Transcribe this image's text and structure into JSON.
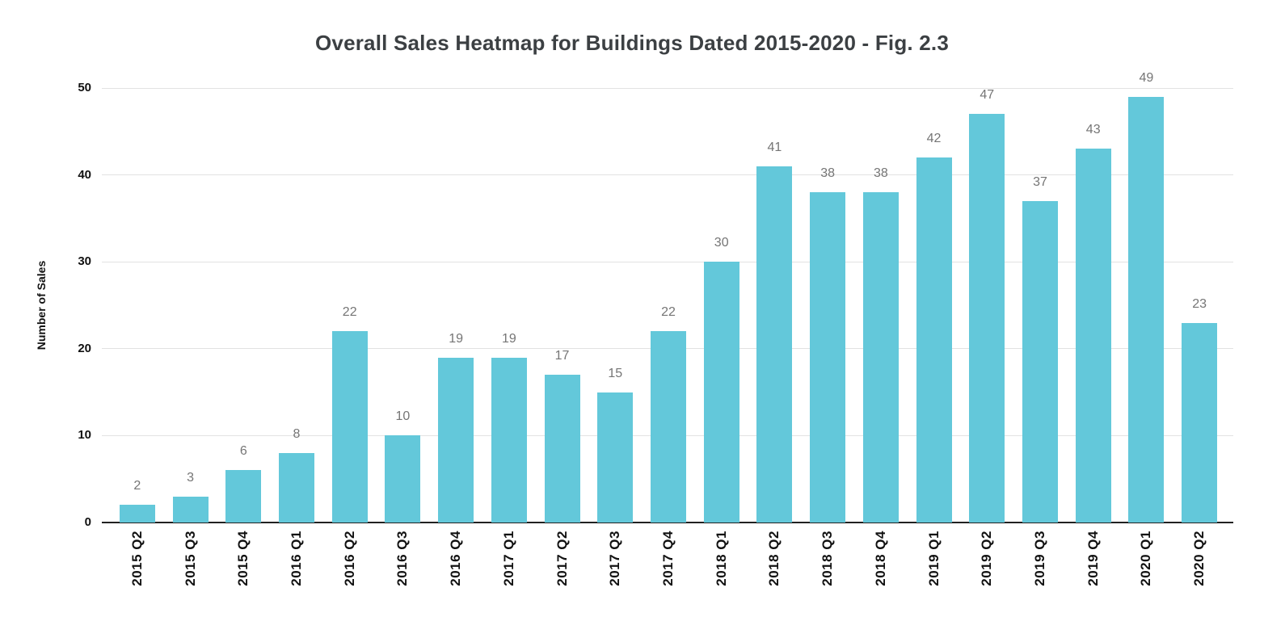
{
  "chart_data": {
    "type": "bar",
    "title": "Overall Sales Heatmap for Buildings Dated 2015-2020 - Fig. 2.3",
    "xlabel": "",
    "ylabel": "Number of Sales",
    "categories": [
      "2015 Q2",
      "2015 Q3",
      "2015 Q4",
      "2016 Q1",
      "2016 Q2",
      "2016 Q3",
      "2016 Q4",
      "2017 Q1",
      "2017 Q2",
      "2017 Q3",
      "2017 Q4",
      "2018 Q1",
      "2018 Q2",
      "2018 Q3",
      "2018 Q4",
      "2019 Q1",
      "2019 Q2",
      "2019 Q3",
      "2019 Q4",
      "2020 Q1",
      "2020 Q2"
    ],
    "values": [
      2,
      3,
      6,
      8,
      22,
      10,
      19,
      19,
      17,
      15,
      22,
      30,
      41,
      38,
      38,
      42,
      47,
      37,
      43,
      49,
      23
    ],
    "ylim": [
      0,
      50
    ],
    "yticks": [
      0,
      10,
      20,
      30,
      40,
      50
    ],
    "grid": true,
    "legend": "none",
    "colors": {
      "bar": "#63C8DA",
      "value_label": "#757575",
      "axis_text": "#111111",
      "grid_line": "#E2E2E2",
      "axis_line": "#212121",
      "title": "#3C4043",
      "background": "#FFFFFF"
    }
  }
}
